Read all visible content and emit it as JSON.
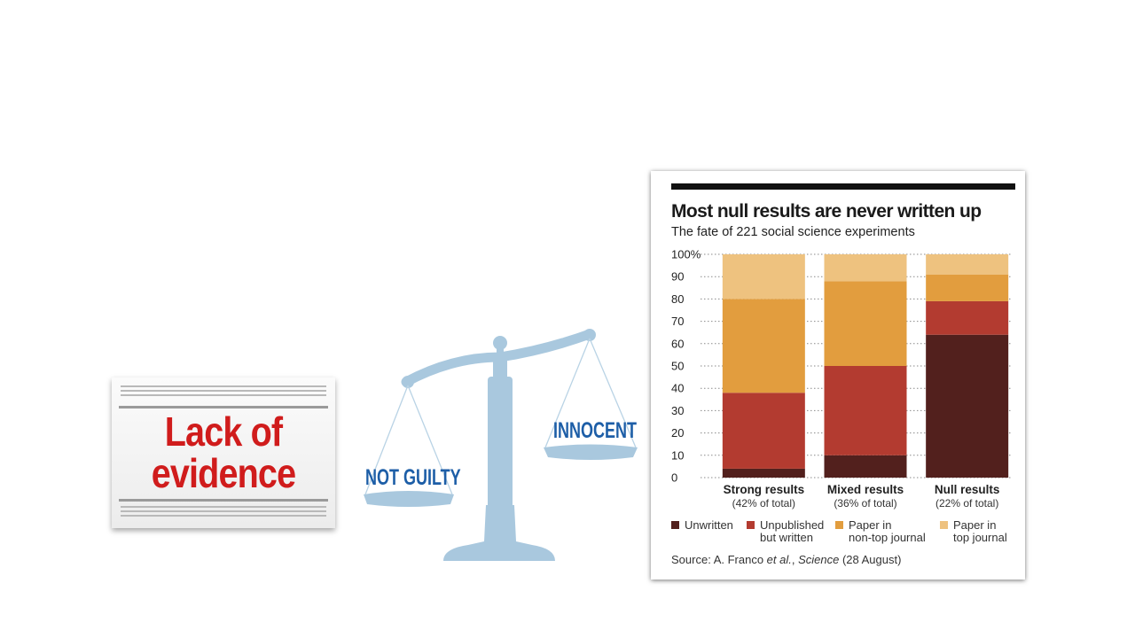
{
  "newspaper": {
    "headline_line1": "Lack of",
    "headline_line2": "evidence"
  },
  "scales": {
    "left_pan_label": "NOT GUILTY",
    "right_pan_label": "INNOCENT"
  },
  "chart_data": {
    "type": "bar",
    "stacked": true,
    "title": "Most null results are never written up",
    "subtitle": "The fate of 221 social science experiments",
    "categories": [
      "Strong results",
      "Mixed results",
      "Null results"
    ],
    "category_notes": [
      "(42% of total)",
      "(36% of total)",
      "(22% of total)"
    ],
    "y_ticks": [
      "100%",
      "90",
      "80",
      "70",
      "60",
      "50",
      "40",
      "30",
      "20",
      "10",
      "0"
    ],
    "ylim": [
      0,
      100
    ],
    "grid": true,
    "legend_position": "bottom",
    "series": [
      {
        "name": "Unwritten",
        "values": [
          4,
          10,
          64
        ],
        "color": "#52201d"
      },
      {
        "name": "Unpublished but written",
        "values": [
          34,
          40,
          15
        ],
        "color": "#b33b30"
      },
      {
        "name": "Paper in non-top journal",
        "values": [
          42,
          38,
          12
        ],
        "color": "#e29d3e"
      },
      {
        "name": "Paper in top journal",
        "values": [
          20,
          12,
          9
        ],
        "color": "#eec27f"
      }
    ],
    "legend": [
      {
        "lines": [
          "Unwritten"
        ]
      },
      {
        "lines": [
          "Unpublished",
          "but written"
        ]
      },
      {
        "lines": [
          "Paper in",
          "non-top journal"
        ]
      },
      {
        "lines": [
          "Paper in",
          "top journal"
        ]
      }
    ],
    "source_prefix": "Source: A. Franco ",
    "source_italic1": "et al.",
    "source_middle": ", ",
    "source_italic2": "Science",
    "source_suffix": " (28 August)"
  },
  "colors": {
    "headline_red": "#d01c1c",
    "scale_blue": "#a9c8de",
    "label_blue": "#1d5ea7"
  }
}
